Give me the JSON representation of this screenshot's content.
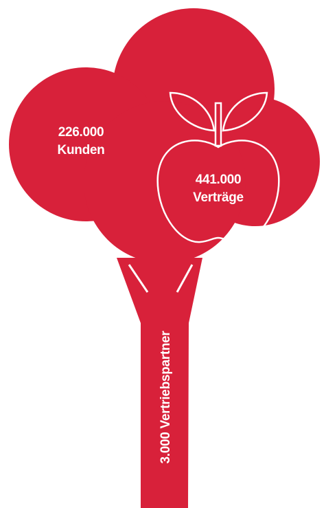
{
  "crown": {
    "customers": {
      "number": "226.000",
      "label": "Kunden"
    }
  },
  "apple": {
    "number": "441.000",
    "label": "Verträge"
  },
  "trunk": {
    "label": "3.000 Vertriebspartner"
  }
}
